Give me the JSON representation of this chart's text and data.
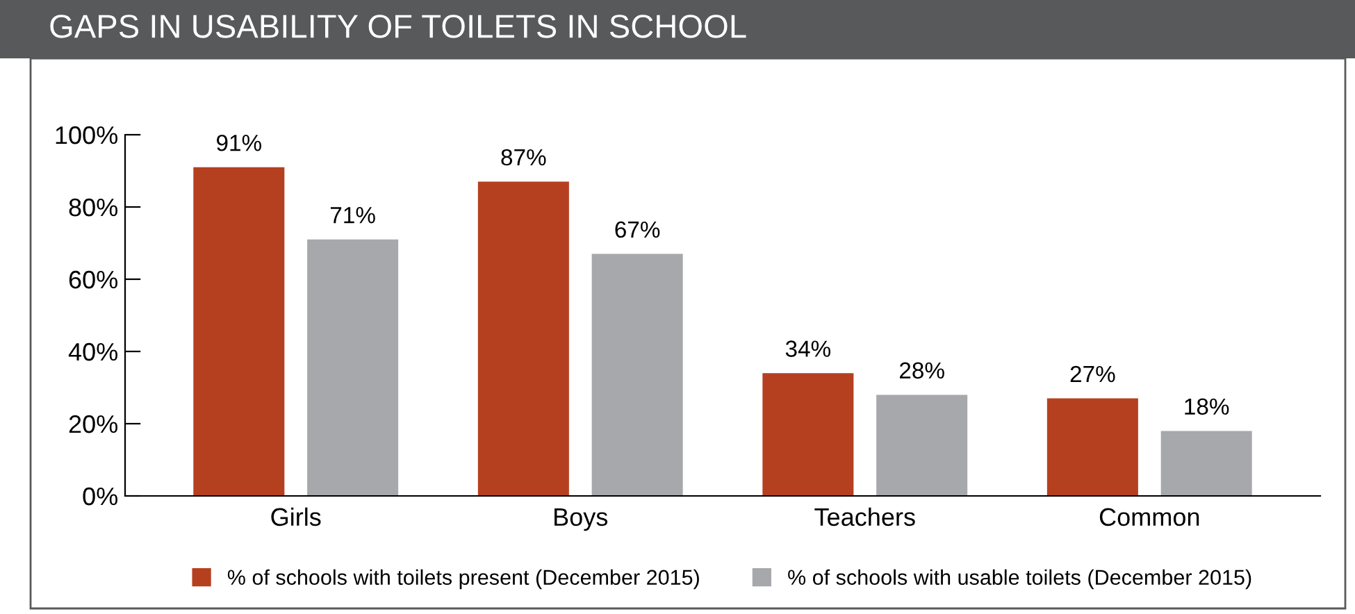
{
  "chart_data": {
    "type": "bar",
    "title": "GAPS IN USABILITY OF TOILETS IN SCHOOL",
    "categories": [
      "Girls",
      "Boys",
      "Teachers",
      "Common"
    ],
    "series": [
      {
        "name": "% of schools with toilets present (December 2015)",
        "color": "#b5401f",
        "values": [
          91,
          87,
          34,
          27
        ]
      },
      {
        "name": "% of schools with usable toilets (December 2015)",
        "color": "#a7a8ab",
        "values": [
          71,
          67,
          28,
          18
        ]
      }
    ],
    "ylim": [
      0,
      100
    ],
    "yticks": [
      {
        "value": 0,
        "label": "0%"
      },
      {
        "value": 20,
        "label": "20%"
      },
      {
        "value": 40,
        "label": "40%"
      },
      {
        "value": 60,
        "label": "60%"
      },
      {
        "value": 80,
        "label": "80%"
      },
      {
        "value": 100,
        "label": "100%"
      }
    ],
    "value_labels": [
      [
        "91%",
        "87%",
        "34%",
        "27%"
      ],
      [
        "71%",
        "67%",
        "28%",
        "18%"
      ]
    ],
    "grid": false,
    "legend": "bottom"
  }
}
